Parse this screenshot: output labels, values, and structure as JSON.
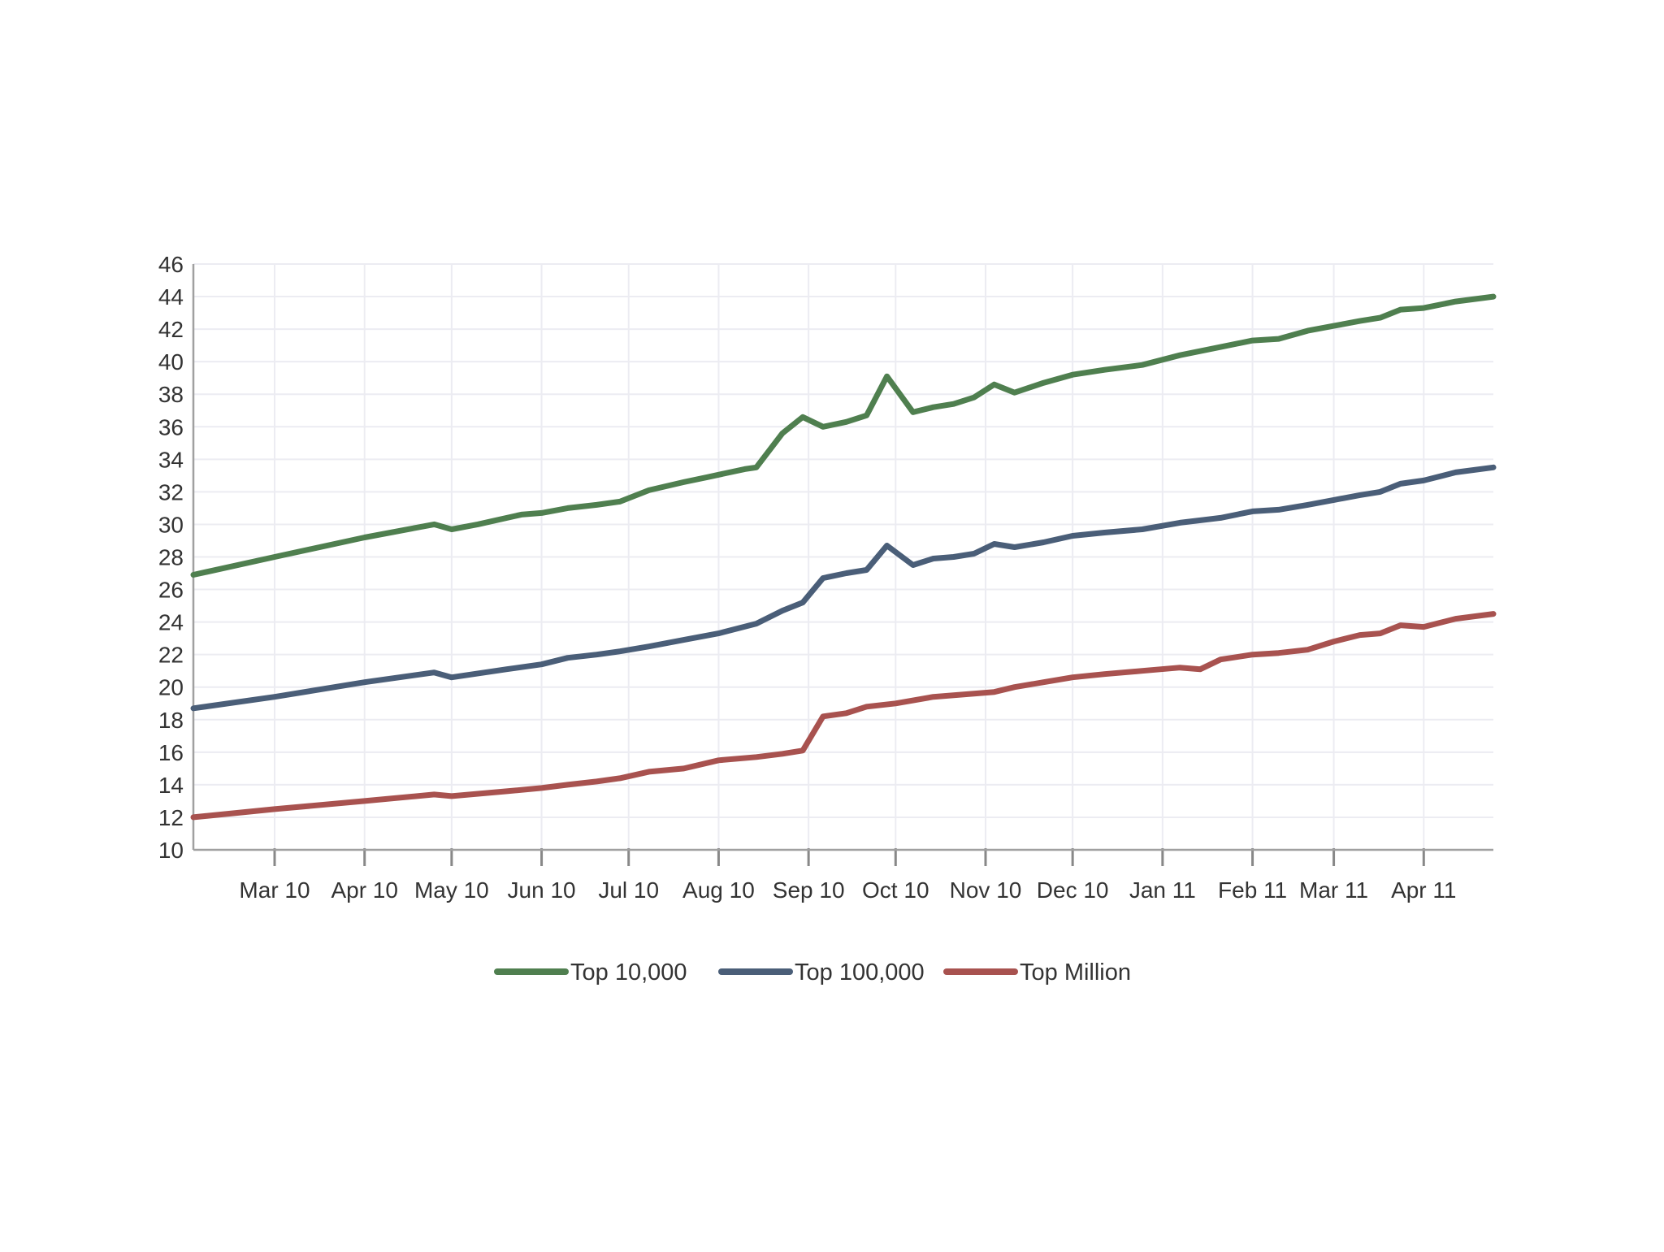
{
  "chart_data": {
    "type": "line",
    "title": "",
    "xlabel": "",
    "ylabel": "",
    "ylim": [
      10,
      46
    ],
    "yticks": [
      10,
      12,
      14,
      16,
      18,
      20,
      22,
      24,
      26,
      28,
      30,
      32,
      34,
      36,
      38,
      40,
      42,
      44,
      46
    ],
    "xlim": [
      "2010-02-01",
      "2011-04-25"
    ],
    "xticks": [
      {
        "label": "Mar 10",
        "date": "2010-03-01"
      },
      {
        "label": "Apr 10",
        "date": "2010-04-01"
      },
      {
        "label": "May 10",
        "date": "2010-05-01"
      },
      {
        "label": "Jun 10",
        "date": "2010-06-01"
      },
      {
        "label": "Jul 10",
        "date": "2010-07-01"
      },
      {
        "label": "Aug 10",
        "date": "2010-08-01"
      },
      {
        "label": "Sep 10",
        "date": "2010-09-01"
      },
      {
        "label": "Oct 10",
        "date": "2010-10-01"
      },
      {
        "label": "Nov 10",
        "date": "2010-11-01"
      },
      {
        "label": "Dec 10",
        "date": "2010-12-01"
      },
      {
        "label": "Jan 11",
        "date": "2011-01-01"
      },
      {
        "label": "Feb 11",
        "date": "2011-02-01"
      },
      {
        "label": "Mar 11",
        "date": "2011-03-01"
      },
      {
        "label": "Apr 11",
        "date": "2011-04-01"
      }
    ],
    "grid": true,
    "legend_position": "bottom-center",
    "series": [
      {
        "name": "Top 10,000",
        "color": "#4f7f4f",
        "points": [
          [
            "2010-02-01",
            26.9
          ],
          [
            "2010-03-01",
            28.0
          ],
          [
            "2010-04-01",
            29.2
          ],
          [
            "2010-04-25",
            30.0
          ],
          [
            "2010-05-01",
            29.7
          ],
          [
            "2010-05-10",
            30.0
          ],
          [
            "2010-05-25",
            30.6
          ],
          [
            "2010-06-01",
            30.7
          ],
          [
            "2010-06-10",
            31.0
          ],
          [
            "2010-06-20",
            31.2
          ],
          [
            "2010-06-28",
            31.4
          ],
          [
            "2010-07-08",
            32.1
          ],
          [
            "2010-07-20",
            32.6
          ],
          [
            "2010-07-28",
            32.9
          ],
          [
            "2010-08-10",
            33.4
          ],
          [
            "2010-08-14",
            33.5
          ],
          [
            "2010-08-23",
            35.6
          ],
          [
            "2010-08-30",
            36.6
          ],
          [
            "2010-09-06",
            36.0
          ],
          [
            "2010-09-14",
            36.3
          ],
          [
            "2010-09-21",
            36.7
          ],
          [
            "2010-09-28",
            39.1
          ],
          [
            "2010-10-07",
            36.9
          ],
          [
            "2010-10-14",
            37.2
          ],
          [
            "2010-10-21",
            37.4
          ],
          [
            "2010-10-28",
            37.8
          ],
          [
            "2010-11-04",
            38.6
          ],
          [
            "2010-11-11",
            38.1
          ],
          [
            "2010-11-21",
            38.7
          ],
          [
            "2010-12-01",
            39.2
          ],
          [
            "2010-12-12",
            39.5
          ],
          [
            "2010-12-25",
            39.8
          ],
          [
            "2011-01-07",
            40.4
          ],
          [
            "2011-01-21",
            40.9
          ],
          [
            "2011-02-01",
            41.3
          ],
          [
            "2011-02-10",
            41.4
          ],
          [
            "2011-02-20",
            41.9
          ],
          [
            "2011-03-01",
            42.2
          ],
          [
            "2011-03-10",
            42.5
          ],
          [
            "2011-03-17",
            42.7
          ],
          [
            "2011-03-24",
            43.2
          ],
          [
            "2011-04-01",
            43.3
          ],
          [
            "2011-04-12",
            43.7
          ],
          [
            "2011-04-25",
            44.0
          ]
        ]
      },
      {
        "name": "Top 100,000",
        "color": "#4a5e78",
        "points": [
          [
            "2010-02-01",
            18.7
          ],
          [
            "2010-03-01",
            19.4
          ],
          [
            "2010-04-01",
            20.3
          ],
          [
            "2010-04-25",
            20.9
          ],
          [
            "2010-05-01",
            20.6
          ],
          [
            "2010-05-20",
            21.1
          ],
          [
            "2010-06-01",
            21.4
          ],
          [
            "2010-06-10",
            21.8
          ],
          [
            "2010-06-20",
            22.0
          ],
          [
            "2010-06-28",
            22.2
          ],
          [
            "2010-07-08",
            22.5
          ],
          [
            "2010-07-20",
            22.9
          ],
          [
            "2010-08-01",
            23.3
          ],
          [
            "2010-08-14",
            23.9
          ],
          [
            "2010-08-23",
            24.7
          ],
          [
            "2010-08-30",
            25.2
          ],
          [
            "2010-09-06",
            26.7
          ],
          [
            "2010-09-14",
            27.0
          ],
          [
            "2010-09-21",
            27.2
          ],
          [
            "2010-09-28",
            28.7
          ],
          [
            "2010-10-07",
            27.5
          ],
          [
            "2010-10-14",
            27.9
          ],
          [
            "2010-10-21",
            28.0
          ],
          [
            "2010-10-28",
            28.2
          ],
          [
            "2010-11-04",
            28.8
          ],
          [
            "2010-11-11",
            28.6
          ],
          [
            "2010-11-21",
            28.9
          ],
          [
            "2010-12-01",
            29.3
          ],
          [
            "2010-12-12",
            29.5
          ],
          [
            "2010-12-25",
            29.7
          ],
          [
            "2011-01-07",
            30.1
          ],
          [
            "2011-01-21",
            30.4
          ],
          [
            "2011-02-01",
            30.8
          ],
          [
            "2011-02-10",
            30.9
          ],
          [
            "2011-02-20",
            31.2
          ],
          [
            "2011-03-01",
            31.5
          ],
          [
            "2011-03-10",
            31.8
          ],
          [
            "2011-03-17",
            32.0
          ],
          [
            "2011-03-24",
            32.5
          ],
          [
            "2011-04-01",
            32.7
          ],
          [
            "2011-04-12",
            33.2
          ],
          [
            "2011-04-25",
            33.5
          ]
        ]
      },
      {
        "name": "Top Million",
        "color": "#a8524f",
        "points": [
          [
            "2010-02-01",
            12.0
          ],
          [
            "2010-03-01",
            12.5
          ],
          [
            "2010-04-01",
            13.0
          ],
          [
            "2010-04-25",
            13.4
          ],
          [
            "2010-05-01",
            13.3
          ],
          [
            "2010-05-20",
            13.6
          ],
          [
            "2010-06-01",
            13.8
          ],
          [
            "2010-06-10",
            14.0
          ],
          [
            "2010-06-20",
            14.2
          ],
          [
            "2010-06-28",
            14.4
          ],
          [
            "2010-07-08",
            14.8
          ],
          [
            "2010-07-20",
            15.0
          ],
          [
            "2010-08-01",
            15.5
          ],
          [
            "2010-08-14",
            15.7
          ],
          [
            "2010-08-23",
            15.9
          ],
          [
            "2010-08-30",
            16.1
          ],
          [
            "2010-09-06",
            18.2
          ],
          [
            "2010-09-14",
            18.4
          ],
          [
            "2010-09-21",
            18.8
          ],
          [
            "2010-10-01",
            19.0
          ],
          [
            "2010-10-14",
            19.4
          ],
          [
            "2010-10-28",
            19.6
          ],
          [
            "2010-11-04",
            19.7
          ],
          [
            "2010-11-11",
            20.0
          ],
          [
            "2010-11-21",
            20.3
          ],
          [
            "2010-12-01",
            20.6
          ],
          [
            "2010-12-12",
            20.8
          ],
          [
            "2010-12-25",
            21.0
          ],
          [
            "2011-01-07",
            21.2
          ],
          [
            "2011-01-14",
            21.1
          ],
          [
            "2011-01-21",
            21.7
          ],
          [
            "2011-02-01",
            22.0
          ],
          [
            "2011-02-10",
            22.1
          ],
          [
            "2011-02-20",
            22.3
          ],
          [
            "2011-03-01",
            22.8
          ],
          [
            "2011-03-10",
            23.2
          ],
          [
            "2011-03-17",
            23.3
          ],
          [
            "2011-03-24",
            23.8
          ],
          [
            "2011-04-01",
            23.7
          ],
          [
            "2011-04-12",
            24.2
          ],
          [
            "2011-04-25",
            24.5
          ]
        ]
      }
    ]
  }
}
